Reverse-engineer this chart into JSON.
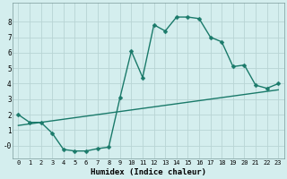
{
  "xlabel": "Humidex (Indice chaleur)",
  "background_color": "#d4eeee",
  "grid_color": "#b8d4d4",
  "line_color": "#1a7a6a",
  "xlim": [
    -0.5,
    23.5
  ],
  "ylim": [
    -0.85,
    9.2
  ],
  "xticks": [
    0,
    1,
    2,
    3,
    4,
    5,
    6,
    7,
    8,
    9,
    10,
    11,
    12,
    13,
    14,
    15,
    16,
    17,
    18,
    19,
    20,
    21,
    22,
    23
  ],
  "yticks": [
    0,
    1,
    2,
    3,
    4,
    5,
    6,
    7,
    8
  ],
  "ytick_labels": [
    "-0",
    "1",
    "2",
    "3",
    "4",
    "5",
    "6",
    "7",
    "8"
  ],
  "curve1_x": [
    0,
    1,
    2,
    3,
    4,
    5,
    6,
    7,
    8,
    9,
    10,
    11,
    12,
    13,
    14,
    15,
    16,
    17,
    18,
    19,
    20,
    21,
    22,
    23
  ],
  "curve1_y": [
    2.0,
    1.5,
    1.5,
    0.8,
    -0.25,
    -0.35,
    -0.35,
    -0.2,
    -0.1,
    3.1,
    6.1,
    4.4,
    7.8,
    7.4,
    8.3,
    8.3,
    8.2,
    7.0,
    6.7,
    5.1,
    5.2,
    3.9,
    3.7,
    4.0
  ],
  "curve2_x": [
    0,
    23
  ],
  "curve2_y": [
    1.3,
    3.6
  ],
  "markersize": 2.5,
  "linewidth": 1.0
}
